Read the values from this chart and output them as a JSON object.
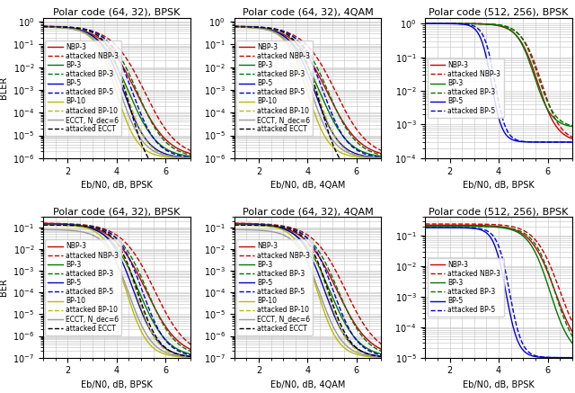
{
  "titles": [
    "Polar code (64, 32), BPSK",
    "Polar code (64, 32), 4QAM",
    "Polar code (512, 256), BPSK",
    "Polar code (64, 32), BPSK",
    "Polar code (64, 32), 4QAM",
    "Polar code (512, 256), BPSK"
  ],
  "xlabels": [
    "Eb/N0, dB, BPSK",
    "Eb/N0, dB, 4QAM",
    "Eb/N0, dB, BPSK",
    "Eb/N0, dB, BPSK",
    "Eb/N0, dB, 4QAM",
    "Eb/N0, dB, BPSK"
  ],
  "ylabel_top": "BLER",
  "ylabel_bot": "BER",
  "colors": {
    "NBP3": "#cc0000",
    "attacked_NBP3": "#cc0000",
    "BP3": "#007700",
    "attacked_BP3": "#007700",
    "BP5": "#0000cc",
    "attacked_BP5": "#0000cc",
    "BP10": "#bbbb00",
    "attacked_BP10": "#bbbb00",
    "ECCT": "#999999",
    "attacked_ECCT": "#000000"
  },
  "background": "#ffffff",
  "grid_color": "#cccccc"
}
